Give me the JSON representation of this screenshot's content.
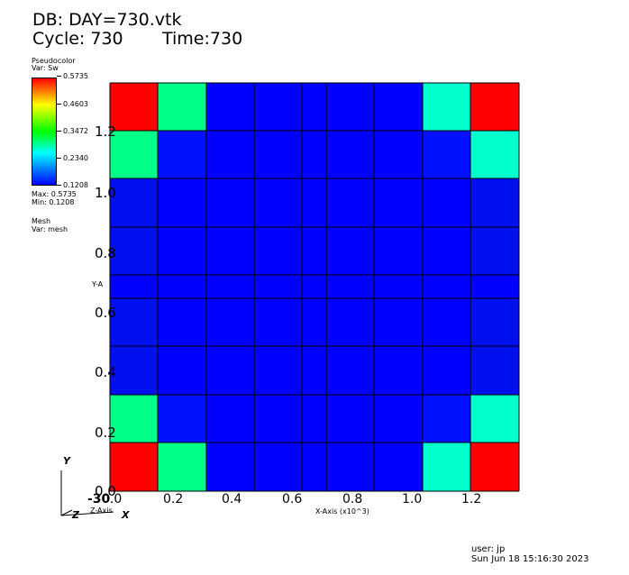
{
  "header": {
    "db_line": "DB: DAY=730.vtk",
    "cycle_line": "Cycle: 730",
    "time_line": "Time:730"
  },
  "legend": {
    "plot_type": "Pseudocolor",
    "var": "Var: Sw",
    "ticks": [
      "0.5735",
      "0.4603",
      "0.3472",
      "0.2340",
      "0.1208"
    ],
    "max": "Max:  0.5735",
    "min": "Min:  0.1208",
    "mesh_title": "Mesh",
    "mesh_var": "Var: mesh"
  },
  "axes": {
    "y_ticks": [
      "1.2",
      "1.0",
      "0.8",
      "0.6",
      "0.4",
      "0.2",
      "0.0"
    ],
    "x_ticks": [
      "0.0",
      "0.2",
      "0.4",
      "0.6",
      "0.8",
      "1.0",
      "1.2"
    ],
    "x_label": "X-Axis (x10^3)",
    "y_label": "Y-A",
    "z_label": "Z-Axis",
    "z_tick": "-30",
    "triad_x": "X",
    "triad_y": "Y",
    "triad_z": "Z"
  },
  "colors": {
    "red": "#ff0000",
    "green": "#00ff88",
    "teal": "#00ffcc",
    "blue": "#0000ff",
    "blue2": "#0011ff",
    "blue3": "#0010ee"
  },
  "grid_colors": [
    [
      "red",
      "green",
      "blue",
      "blue",
      "blue",
      "blue",
      "blue",
      "teal",
      "red"
    ],
    [
      "green",
      "blue2",
      "blue",
      "blue",
      "blue",
      "blue",
      "blue",
      "blue2",
      "teal"
    ],
    [
      "blue3",
      "blue",
      "blue",
      "blue",
      "blue",
      "blue",
      "blue",
      "blue",
      "blue3"
    ],
    [
      "blue3",
      "blue",
      "blue",
      "blue",
      "blue",
      "blue",
      "blue",
      "blue",
      "blue3"
    ],
    [
      "blue",
      "blue",
      "blue",
      "blue",
      "blue",
      "blue",
      "blue",
      "blue",
      "blue"
    ],
    [
      "blue3",
      "blue",
      "blue",
      "blue",
      "blue",
      "blue",
      "blue",
      "blue",
      "blue3"
    ],
    [
      "blue3",
      "blue",
      "blue",
      "blue",
      "blue",
      "blue",
      "blue",
      "blue",
      "blue3"
    ],
    [
      "green",
      "blue2",
      "blue",
      "blue",
      "blue",
      "blue",
      "blue",
      "blue2",
      "teal"
    ],
    [
      "red",
      "green",
      "blue",
      "blue",
      "blue",
      "blue",
      "blue",
      "teal",
      "red"
    ]
  ],
  "footer": {
    "user": "user: jp",
    "date": "Sun Jun 18 15:16:30 2023"
  }
}
